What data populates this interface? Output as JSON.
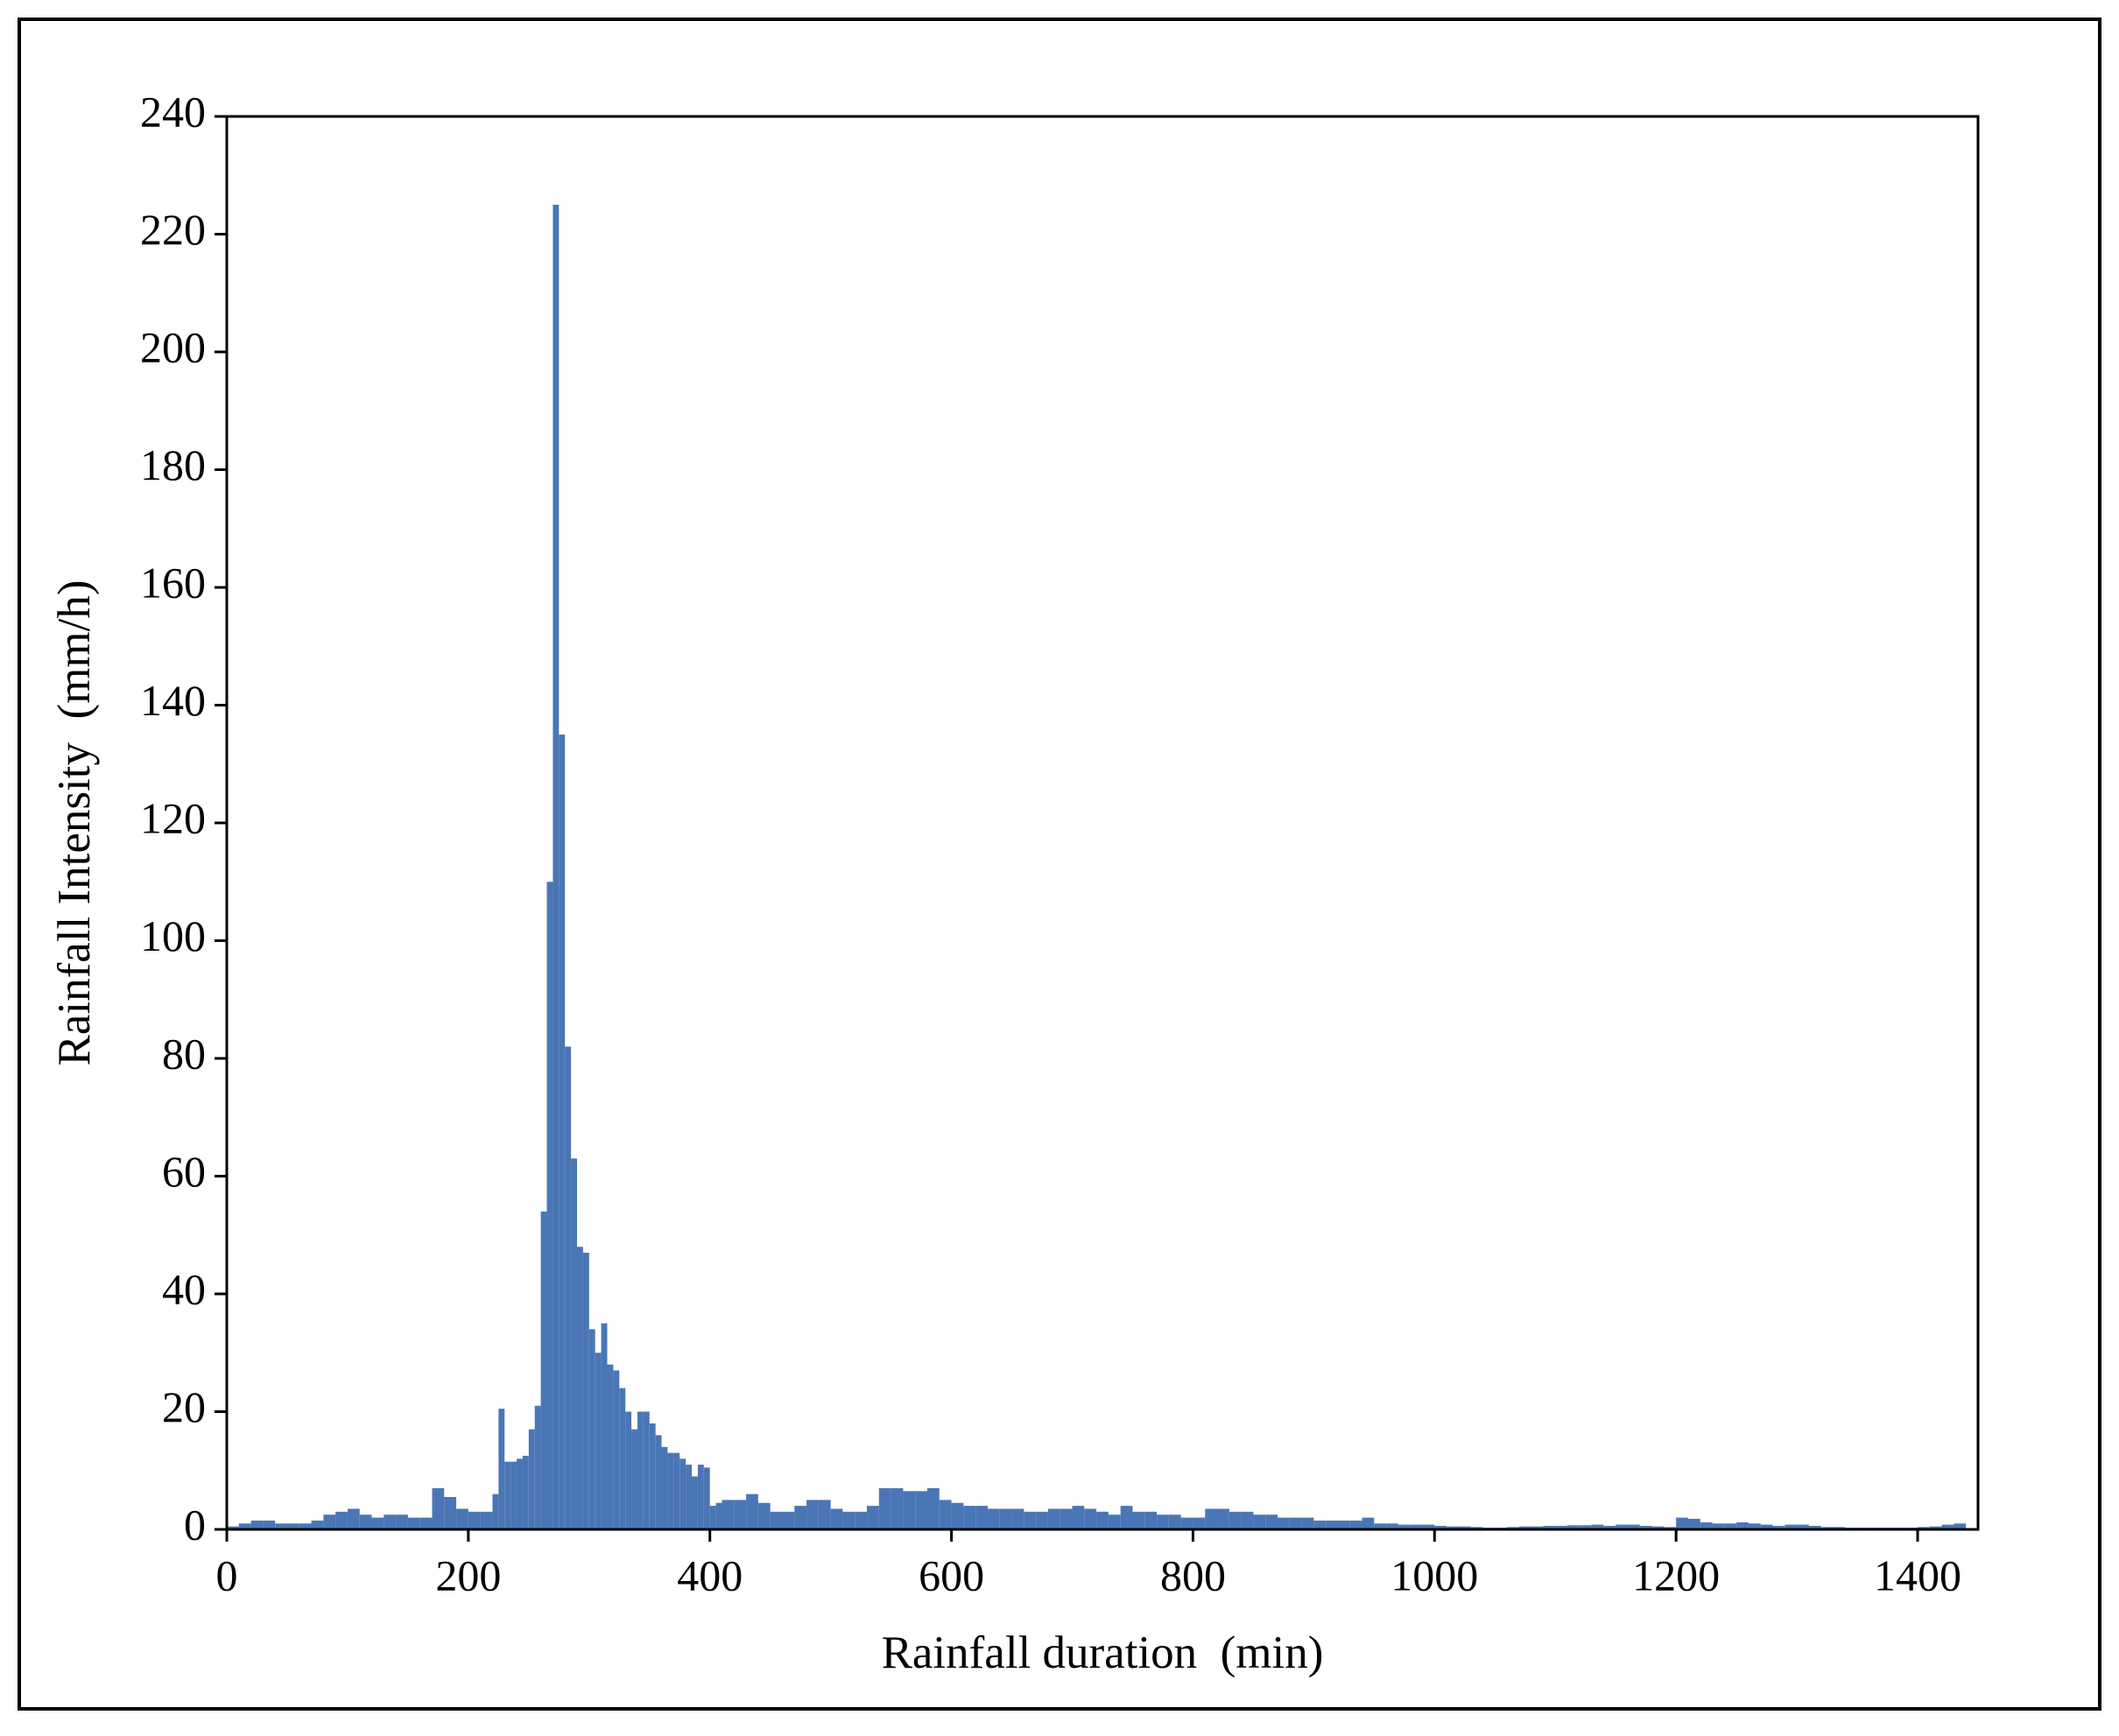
{
  "chart_data": {
    "type": "histogram",
    "xlabel": "Rainfall duration  (min)",
    "ylabel": "Rainfall Intensity  (mm/h)",
    "color": "#4a76b5",
    "xlim": [
      0,
      1450
    ],
    "xticks": [
      0,
      200,
      400,
      600,
      800,
      1000,
      1200,
      1400
    ],
    "ylim": [
      0,
      240
    ],
    "yticks": [
      0,
      20,
      40,
      60,
      80,
      100,
      120,
      140,
      160,
      180,
      200,
      220,
      240
    ],
    "grid": false,
    "bins": [
      0,
      10,
      20,
      30,
      40,
      50,
      60,
      70,
      80,
      90,
      100,
      110,
      120,
      130,
      140,
      150,
      160,
      170,
      180,
      190,
      200,
      210,
      220,
      225,
      230,
      235,
      240,
      245,
      250,
      255,
      260,
      265,
      270,
      275,
      280,
      285,
      290,
      295,
      300,
      305,
      310,
      315,
      320,
      325,
      330,
      335,
      340,
      345,
      350,
      355,
      360,
      365,
      370,
      375,
      380,
      385,
      390,
      395,
      400,
      405,
      410,
      420,
      430,
      440,
      450,
      460,
      470,
      480,
      490,
      500,
      510,
      520,
      530,
      540,
      550,
      560,
      570,
      580,
      590,
      600,
      610,
      620,
      630,
      640,
      650,
      660,
      670,
      680,
      690,
      700,
      710,
      720,
      730,
      740,
      750,
      760,
      770,
      780,
      790,
      800,
      810,
      820,
      830,
      840,
      850,
      860,
      870,
      880,
      890,
      900,
      910,
      920,
      930,
      940,
      950,
      960,
      970,
      980,
      990,
      1000,
      1010,
      1020,
      1030,
      1040,
      1050,
      1060,
      1070,
      1080,
      1090,
      1100,
      1110,
      1120,
      1130,
      1140,
      1150,
      1160,
      1170,
      1180,
      1190,
      1200,
      1210,
      1220,
      1230,
      1240,
      1250,
      1260,
      1270,
      1280,
      1290,
      1300,
      1310,
      1320,
      1330,
      1340,
      1350,
      1360,
      1370,
      1380,
      1390,
      1400,
      1410,
      1420,
      1430,
      1440
    ],
    "values": [
      0.5,
      1,
      1.5,
      1.5,
      1,
      1,
      1,
      1.5,
      2.5,
      3,
      3.5,
      2.5,
      2,
      2.5,
      2.5,
      2,
      2,
      7,
      5.5,
      3.5,
      3,
      3,
      6,
      20.5,
      11.5,
      11.5,
      12,
      12.5,
      17,
      21,
      54,
      110,
      225,
      135,
      82,
      63,
      48,
      47,
      34,
      30,
      35,
      28,
      27,
      24,
      20,
      17,
      20,
      20,
      18,
      16,
      14,
      13,
      13,
      12,
      11,
      9,
      11,
      10.5,
      4,
      4.5,
      5,
      5,
      6,
      4.5,
      3,
      3,
      4,
      5,
      5,
      3.5,
      3,
      3,
      4,
      7,
      7,
      6.5,
      6.5,
      7,
      5,
      4.5,
      4,
      4,
      3.5,
      3.5,
      3.5,
      3,
      3,
      3.5,
      3.5,
      4,
      3.5,
      3,
      2.5,
      4,
      3,
      3,
      2.5,
      2.5,
      2,
      2,
      3.5,
      3.5,
      3,
      3,
      2.5,
      2.5,
      2,
      2,
      2,
      1.5,
      1.5,
      1.5,
      1.5,
      2,
      1,
      1,
      0.8,
      0.8,
      0.8,
      0.6,
      0.5,
      0.5,
      0.4,
      0.3,
      0.3,
      0.4,
      0.5,
      0.5,
      0.6,
      0.6,
      0.7,
      0.7,
      0.8,
      0.6,
      0.8,
      0.8,
      0.6,
      0.5,
      0.4,
      2,
      1.8,
      1.2,
      1,
      1,
      1.2,
      1,
      0.8,
      0.6,
      0.8,
      0.8,
      0.6,
      0.4,
      0.4,
      0.3,
      0.3,
      0.3,
      0.3,
      0.3,
      0.3,
      0.4,
      0.5,
      0.8,
      1
    ]
  }
}
